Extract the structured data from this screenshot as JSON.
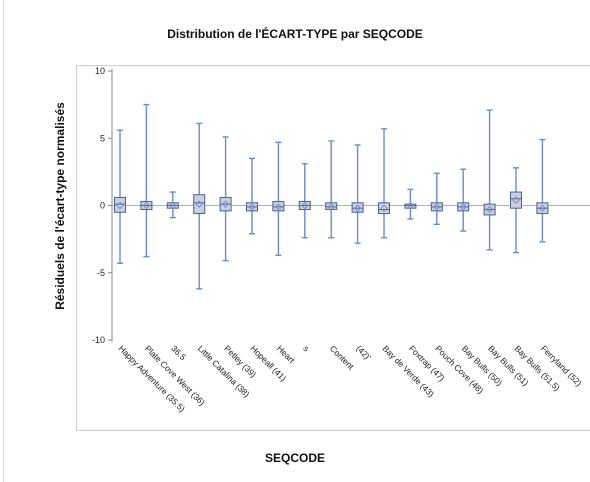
{
  "chart_data": {
    "type": "boxplot",
    "title": "Distribution de l'ÉCART-TYPE par SEQCODE",
    "xlabel": "SEQCODE",
    "ylabel": "Résiduels de l'écart-type normalisés",
    "ylim": [
      -10,
      10
    ],
    "yticks": [
      10,
      5,
      0,
      -5,
      -10
    ],
    "grid": false,
    "reference_line": 0,
    "colors": {
      "box_fill": "#c9cfdc",
      "box_stroke": "#4a5f94",
      "whisker": "#6b8bd0",
      "mean_marker": "#7b8fc7",
      "ref_line": "#b0b0b0"
    },
    "categories": [
      "Happy Adventure (35.5)",
      "Plate Cove West (36)",
      "36.5",
      "Little Catalina (38)",
      "Petley (39)",
      "Hopeall (41)",
      "Heart",
      "s",
      "Content",
      "(42)'",
      "Bay de Verde (43)",
      "Foxtrap (47)",
      "Pouch Cove (48)",
      "Bay Bulls (50)",
      "Bay Bulls (51)",
      "Bay Bulls (51.5)",
      "Ferryland (52)"
    ],
    "series": [
      {
        "min": -4.3,
        "q1": -0.5,
        "median": 0.1,
        "q3": 0.6,
        "max": 5.6,
        "mean": 0.0
      },
      {
        "min": -3.8,
        "q1": -0.3,
        "median": 0.0,
        "q3": 0.3,
        "max": 7.5,
        "mean": 0.0
      },
      {
        "min": -0.9,
        "q1": -0.2,
        "median": 0.0,
        "q3": 0.2,
        "max": 1.0,
        "mean": 0.0
      },
      {
        "min": -6.2,
        "q1": -0.6,
        "median": 0.2,
        "q3": 0.8,
        "max": 6.1,
        "mean": 0.1
      },
      {
        "min": -4.1,
        "q1": -0.4,
        "median": 0.1,
        "q3": 0.6,
        "max": 5.1,
        "mean": 0.1
      },
      {
        "min": -2.1,
        "q1": -0.4,
        "median": -0.1,
        "q3": 0.2,
        "max": 3.5,
        "mean": -0.1
      },
      {
        "min": -3.7,
        "q1": -0.4,
        "median": -0.1,
        "q3": 0.3,
        "max": 4.7,
        "mean": -0.1
      },
      {
        "min": -2.4,
        "q1": -0.3,
        "median": 0.0,
        "q3": 0.3,
        "max": 3.1,
        "mean": 0.0
      },
      {
        "min": -2.4,
        "q1": -0.3,
        "median": -0.1,
        "q3": 0.2,
        "max": 4.8,
        "mean": -0.1
      },
      {
        "min": -2.8,
        "q1": -0.5,
        "median": -0.2,
        "q3": 0.2,
        "max": 4.5,
        "mean": -0.2
      },
      {
        "min": -2.4,
        "q1": -0.6,
        "median": -0.3,
        "q3": 0.2,
        "max": 5.7,
        "mean": -0.2
      },
      {
        "min": -1.0,
        "q1": -0.2,
        "median": 0.0,
        "q3": 0.1,
        "max": 1.2,
        "mean": 0.0
      },
      {
        "min": -1.4,
        "q1": -0.4,
        "median": -0.1,
        "q3": 0.2,
        "max": 2.4,
        "mean": -0.1
      },
      {
        "min": -1.9,
        "q1": -0.4,
        "median": -0.1,
        "q3": 0.2,
        "max": 2.7,
        "mean": -0.1
      },
      {
        "min": -3.3,
        "q1": -0.7,
        "median": -0.3,
        "q3": 0.1,
        "max": 7.1,
        "mean": -0.3
      },
      {
        "min": -3.5,
        "q1": -0.2,
        "median": 0.5,
        "q3": 1.0,
        "max": 2.8,
        "mean": 0.4
      },
      {
        "min": -2.7,
        "q1": -0.6,
        "median": -0.2,
        "q3": 0.2,
        "max": 4.9,
        "mean": -0.2
      }
    ]
  }
}
